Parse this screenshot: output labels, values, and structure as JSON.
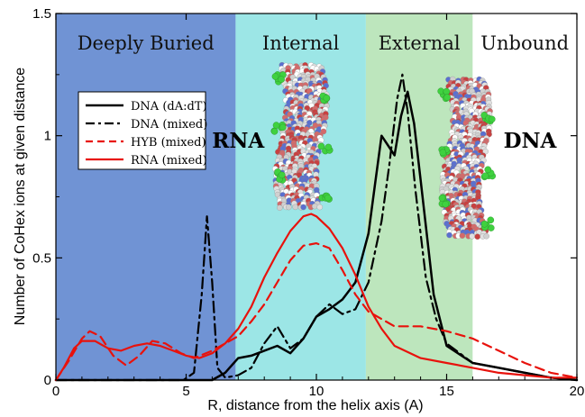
{
  "chart_data": {
    "type": "line",
    "title": "",
    "xlabel": "R, distance from the helix axis (A)",
    "ylabel": "Number of CoHex ions at given distance",
    "xlim": [
      0,
      20
    ],
    "ylim": [
      0,
      1.5
    ],
    "xticks": [
      0,
      5,
      10,
      15,
      20
    ],
    "xtick_labels": [
      "0",
      "5",
      "10",
      "15",
      "20"
    ],
    "yticks": [
      0,
      0.5,
      1,
      1.5
    ],
    "ytick_labels": [
      "0",
      "0.5",
      "1",
      "1.5"
    ],
    "regions": [
      {
        "label": "Deeply Buried",
        "x0": 0,
        "x1": 6.9,
        "color": "#7093d4"
      },
      {
        "label": "Internal",
        "x0": 6.9,
        "x1": 11.9,
        "color": "#9ce6e6"
      },
      {
        "label": "External",
        "x0": 11.9,
        "x1": 16.0,
        "color": "#bde6bd"
      },
      {
        "label": "Unbound",
        "x0": 16.0,
        "x1": 20,
        "color": "#ffffff"
      }
    ],
    "annotations": [
      {
        "text": "RNA",
        "x": 7.0,
        "y": 0.95
      },
      {
        "text": "DNA",
        "x": 18.2,
        "y": 0.95
      }
    ],
    "legend_position": "upper-left",
    "series": [
      {
        "name": "DNA (dA:dT)",
        "color": "#000000",
        "dash": "solid",
        "width": 2.5,
        "x": [
          0,
          5,
          6,
          6.5,
          7,
          7.5,
          8,
          8.5,
          9,
          9.5,
          10,
          10.5,
          11,
          11.5,
          12,
          12.25,
          12.5,
          12.75,
          13,
          13.25,
          13.5,
          13.75,
          14,
          14.5,
          15,
          16,
          17,
          18,
          19,
          20
        ],
        "y": [
          0,
          0,
          0,
          0.03,
          0.09,
          0.1,
          0.12,
          0.14,
          0.11,
          0.17,
          0.26,
          0.29,
          0.33,
          0.4,
          0.6,
          0.8,
          1.0,
          0.96,
          0.92,
          1.08,
          1.18,
          1.05,
          0.82,
          0.35,
          0.14,
          0.07,
          0.05,
          0.03,
          0.01,
          0
        ]
      },
      {
        "name": "DNA (mixed)",
        "color": "#000000",
        "dash": "dashdot",
        "width": 2.2,
        "x": [
          0,
          4.9,
          5.3,
          5.6,
          5.8,
          6.0,
          6.2,
          6.5,
          7,
          7.5,
          8,
          8.5,
          9,
          9.5,
          10,
          10.5,
          11,
          11.5,
          12,
          12.5,
          12.8,
          13.1,
          13.3,
          13.5,
          13.8,
          14.2,
          14.6,
          15,
          16,
          17,
          18,
          19,
          20
        ],
        "y": [
          0,
          0,
          0.03,
          0.35,
          0.67,
          0.4,
          0.05,
          0.01,
          0.02,
          0.05,
          0.15,
          0.22,
          0.13,
          0.17,
          0.26,
          0.31,
          0.27,
          0.29,
          0.4,
          0.65,
          0.88,
          1.15,
          1.25,
          1.1,
          0.78,
          0.42,
          0.25,
          0.15,
          0.07,
          0.05,
          0.03,
          0.01,
          0
        ]
      },
      {
        "name": "HYB (mixed)",
        "color": "#e8120c",
        "dash": "dashed",
        "width": 2.2,
        "x": [
          0,
          0.5,
          1.0,
          1.3,
          1.7,
          2.2,
          2.7,
          3.2,
          3.7,
          4.2,
          4.8,
          5.3,
          6,
          7,
          7.5,
          8,
          8.5,
          9,
          9.5,
          10,
          10.5,
          11,
          11.5,
          12,
          13,
          14,
          15,
          16,
          17,
          18,
          19,
          20
        ],
        "y": [
          0,
          0.08,
          0.17,
          0.2,
          0.18,
          0.1,
          0.06,
          0.1,
          0.16,
          0.15,
          0.11,
          0.09,
          0.12,
          0.18,
          0.24,
          0.31,
          0.4,
          0.49,
          0.55,
          0.56,
          0.54,
          0.45,
          0.35,
          0.28,
          0.22,
          0.22,
          0.2,
          0.17,
          0.12,
          0.07,
          0.03,
          0.01
        ]
      },
      {
        "name": "RNA (mixed)",
        "color": "#e8120c",
        "dash": "solid",
        "width": 2.2,
        "x": [
          0,
          0.3,
          0.7,
          1.0,
          1.5,
          2.0,
          2.5,
          3.0,
          3.5,
          4.0,
          4.5,
          5.0,
          5.5,
          6.0,
          6.5,
          7.0,
          7.5,
          8.0,
          8.5,
          9.0,
          9.5,
          9.8,
          10.0,
          10.5,
          11.0,
          11.5,
          12.0,
          12.5,
          13,
          14,
          15,
          16,
          17,
          18,
          19,
          20
        ],
        "y": [
          0,
          0.05,
          0.13,
          0.16,
          0.16,
          0.13,
          0.12,
          0.14,
          0.15,
          0.14,
          0.12,
          0.1,
          0.09,
          0.11,
          0.15,
          0.21,
          0.3,
          0.42,
          0.52,
          0.61,
          0.67,
          0.68,
          0.67,
          0.62,
          0.54,
          0.43,
          0.3,
          0.21,
          0.14,
          0.09,
          0.07,
          0.05,
          0.03,
          0.02,
          0.01,
          0.01
        ]
      }
    ]
  }
}
